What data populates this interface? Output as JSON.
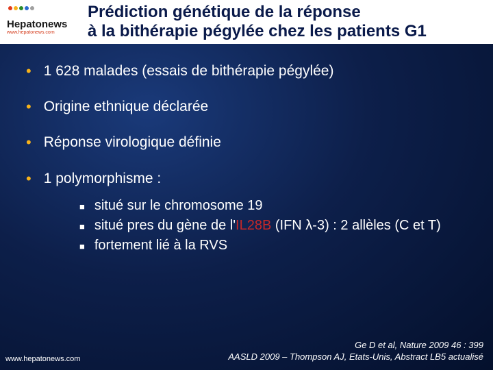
{
  "logo": {
    "name": "Hepatonews",
    "url": "www.hepatonews.com",
    "dot_colors": [
      "#e23a1a",
      "#f7b21a",
      "#2a8a2a",
      "#2a6ad0",
      "#a0a0a0"
    ]
  },
  "title": {
    "line1": "Prédiction génétique de la réponse",
    "line2": "à la bithérapie pégylée chez les patients G1"
  },
  "bullets": [
    {
      "text": "1 628 malades (essais de bithérapie pégylée)"
    },
    {
      "text": "Origine ethnique déclarée"
    },
    {
      "text": "Réponse virologique définie"
    },
    {
      "text": "1 polymorphisme :"
    }
  ],
  "sub_bullets": [
    {
      "pre": "situé sur le chromosome 19",
      "hl": "",
      "post": ""
    },
    {
      "pre": "situé pres du gène de l'",
      "hl": "IL28B",
      "post": " (IFN λ-3) : 2 allèles (C et T)"
    },
    {
      "pre": "fortement lié à la RVS",
      "hl": "",
      "post": ""
    }
  ],
  "citation": {
    "line1": "Ge D et al, Nature 2009 46 : 399",
    "line2": "AASLD 2009 – Thompson AJ, Etats-Unis, Abstract LB5 actualisé"
  },
  "footer_url": "www.hepatonews.com",
  "colors": {
    "bullet": "#f7b21a",
    "highlight": "#c62828",
    "title": "#0a1a4a",
    "text": "#ffffff",
    "bg_center": "#1a3a7a",
    "bg_edge": "#04102c",
    "header_bg": "#ffffff"
  },
  "typography": {
    "title_fontsize": 24,
    "bullet_fontsize": 21,
    "sub_fontsize": 20,
    "citation_fontsize": 13
  }
}
